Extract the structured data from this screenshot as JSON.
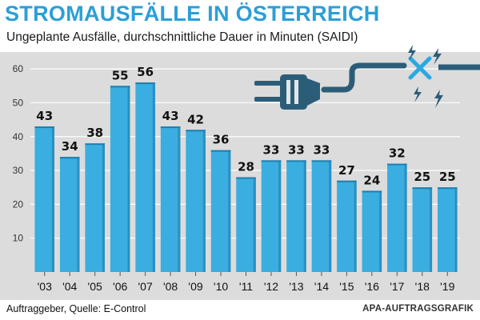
{
  "colors": {
    "title": "#2b9fd6",
    "bar_fill": "#3aaee0",
    "bar_dark": "#2a8fc0",
    "plug": "#2c5d78",
    "background_panel": "#dcdcdc"
  },
  "chart_data": {
    "type": "bar",
    "title": "STROMAUSFÄLLE IN ÖSTERREICH",
    "subtitle": "Ungeplante Ausfälle, durchschnittliche Dauer in Minuten (SAIDI)",
    "categories": [
      "'03",
      "'04",
      "'05",
      "'06",
      "'07",
      "'08",
      "'09",
      "'10",
      "'11",
      "'12",
      "'13",
      "'14",
      "'15",
      "'16",
      "'17",
      "'18",
      "'19"
    ],
    "values": [
      43,
      34,
      38,
      55,
      56,
      43,
      42,
      36,
      28,
      33,
      33,
      33,
      27,
      24,
      32,
      25,
      25
    ],
    "yticks": [
      10,
      20,
      30,
      40,
      50,
      60
    ],
    "ylim": [
      0,
      65
    ],
    "xlabel": "",
    "ylabel": "",
    "grid": true
  },
  "footer": {
    "source": "Auftraggeber, Quelle: E-Control",
    "credit": "APA-AUFTRAGSGRAFIK"
  },
  "illustration": {
    "icon": "unplugged-cable-icon"
  }
}
